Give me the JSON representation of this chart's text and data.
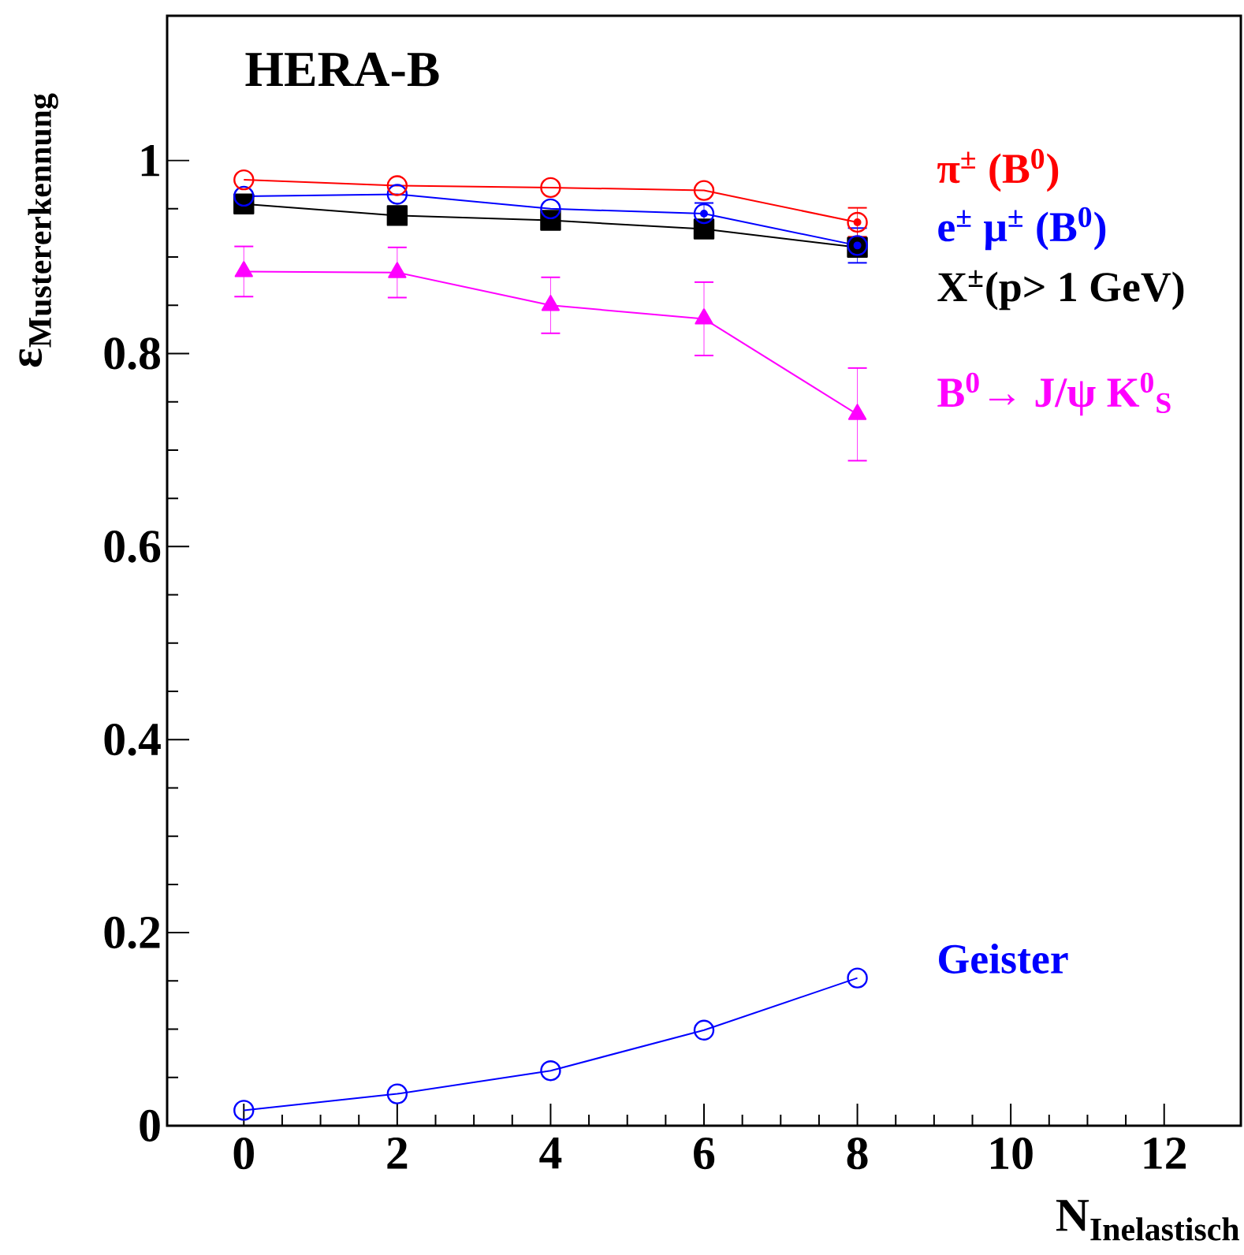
{
  "chart_data": {
    "type": "line",
    "title": "HERA-B",
    "xlabel": "\\mathbf{N}_{\\mathbf{Inelastisch}}",
    "ylabel": "\\mathbf{ε}_{\\mathbf{Mustererkennung}}",
    "x": [
      0,
      2,
      4,
      6,
      8
    ],
    "series": [
      {
        "name": "π$^{±}$ (B$^{0}$)",
        "color": "#ff0000",
        "marker": "circle",
        "values": [
          0.98,
          0.974,
          0.972,
          0.969,
          0.936
        ],
        "errors": [
          null,
          null,
          null,
          null,
          0.015
        ]
      },
      {
        "name": "e$^{±}$ μ$^{±}$ (B$^{0}$)",
        "color": "#0000ff",
        "marker": "circle",
        "values": [
          0.963,
          0.965,
          0.95,
          0.945,
          0.912
        ],
        "errors": [
          null,
          null,
          null,
          0.011,
          0.018
        ]
      },
      {
        "name": "X$^{±}$(p> 1 GeV)",
        "color": "#000000",
        "marker": "square",
        "values": [
          0.955,
          0.943,
          0.938,
          0.929,
          0.91
        ]
      },
      {
        "name": "B$^{0}$→ J/ψ K$^{0}$$_{S}$",
        "color": "#ff00ff",
        "marker": "triangle",
        "values": [
          0.885,
          0.884,
          0.85,
          0.836,
          0.737
        ],
        "errors": [
          0.026,
          0.026,
          0.029,
          0.038,
          0.048
        ]
      },
      {
        "name": "Geister",
        "color": "#0000ff",
        "marker": "circle",
        "values": [
          0.016,
          0.033,
          0.057,
          0.099,
          0.153
        ]
      }
    ],
    "xlim": [
      -1,
      13
    ],
    "ylim": [
      0,
      1.15
    ],
    "xticks": [
      0,
      2,
      4,
      6,
      8,
      10,
      12
    ],
    "yticks": [
      0,
      0.2,
      0.4,
      0.6,
      0.8,
      1
    ],
    "grid": false,
    "legend": "right"
  }
}
